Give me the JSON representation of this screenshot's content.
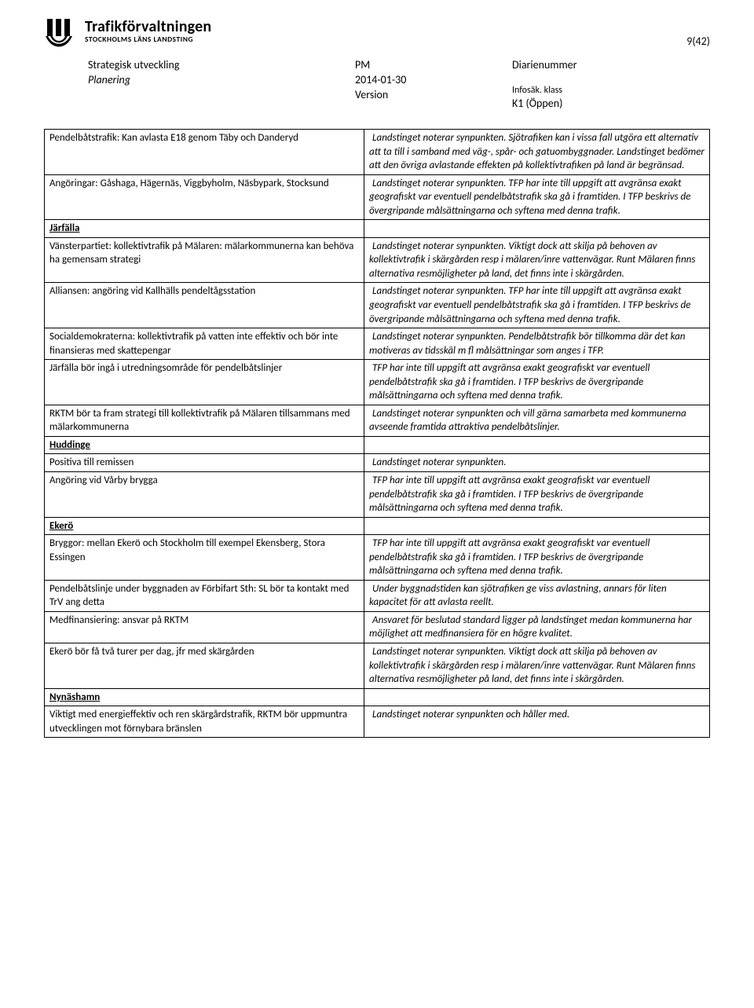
{
  "header": {
    "logo_main": "Trafikförvaltningen",
    "logo_sub": "STOCKHOLMS LÄNS LANDSTING",
    "page_num": "9(42)"
  },
  "meta": {
    "dept": "Strategisk utveckling",
    "dept_sub": "Planering",
    "doc_type": "PM",
    "date": "2014-01-30",
    "version_label": "Version",
    "diarie_label": "Diarienummer",
    "infosak_label": "Infosäk. klass",
    "infosak_value": "K1 (Öppen)"
  },
  "sections": [
    {
      "rows": [
        {
          "left": "Pendelbåtstrafik: Kan avlasta E18 genom Täby och Danderyd",
          "right": "Landstinget noterar synpunkten. Sjötrafiken kan i vissa fall utgöra ett alternativ att ta till i samband med väg-, spår- och gatuombyggnader. Landstinget bedömer att den övriga avlastande effekten på kollektivtrafiken på land är begränsad."
        },
        {
          "left": "Angöringar: Gåshaga, Hägernäs, Viggbyholm, Näsbypark, Stocksund",
          "right": "Landstinget noterar synpunkten. TFP har inte till uppgift att avgränsa exakt geografiskt var eventuell pendelbåtstrafik ska gå i framtiden. I TFP beskrivs de övergripande målsättningarna och syftena med denna trafik."
        }
      ]
    },
    {
      "title": "Järfälla",
      "rows": [
        {
          "left": "Vänsterpartiet: kollektivtrafik på Mälaren: mälarkommunerna kan behöva ha gemensam strategi",
          "right": "Landstinget noterar synpunkten. Viktigt dock att skilja på behoven av kollektivtrafik i skärgården resp i mälaren/inre vattenvägar. Runt Mälaren finns alternativa resmöjligheter på land, det finns inte i skärgården."
        },
        {
          "left": "Alliansen: angöring vid Kallhälls pendeltågsstation",
          "right": "Landstinget noterar synpunkten. TFP har inte till uppgift att avgränsa exakt geografiskt var eventuell pendelbåtstrafik ska gå i framtiden. I TFP beskrivs de övergripande målsättningarna och syftena med denna trafik."
        },
        {
          "left": "Socialdemokraterna: kollektivtrafik på vatten inte effektiv och bör inte finansieras med skattepengar",
          "right": "Landstinget noterar synpunkten. Pendelbåtstrafik bör tillkomma där det kan motiveras av tidsskäl m fl målsättningar som anges i TFP."
        },
        {
          "left": "Järfälla bör ingå i utredningsområde för pendelbåtslinjer",
          "right": "TFP har inte till uppgift att avgränsa exakt geografiskt var eventuell pendelbåtstrafik ska gå i framtiden. I TFP beskrivs de övergripande målsättningarna och syftena med denna trafik."
        },
        {
          "left": "RKTM bör ta fram strategi till kollektivtrafik på Mälaren tillsammans med mälarkommunerna",
          "right": "Landstinget noterar synpunkten och vill gärna samarbeta med kommunerna avseende framtida attraktiva pendelbåtslinjer."
        }
      ]
    },
    {
      "title": "Huddinge",
      "rows": [
        {
          "left": "Positiva till remissen",
          "right": "Landstinget noterar synpunkten."
        },
        {
          "left": "Angöring vid Vårby brygga",
          "right": "TFP har inte till uppgift att avgränsa exakt geografiskt var eventuell pendelbåtstrafik ska gå i framtiden. I TFP beskrivs de övergripande målsättningarna och syftena med denna trafik."
        }
      ]
    },
    {
      "title": "Ekerö",
      "rows": [
        {
          "left": "Bryggor: mellan Ekerö och Stockholm till exempel Ekensberg, Stora Essingen",
          "right": "TFP har inte till uppgift att avgränsa exakt geografiskt var eventuell pendelbåtstrafik ska gå i framtiden. I TFP beskrivs de övergripande målsättningarna och syftena med denna trafik."
        },
        {
          "left": "Pendelbåtslinje under byggnaden av Förbifart Sth: SL bör ta kontakt med TrV ang detta",
          "right": "Under byggnadstiden kan sjötrafiken ge viss avlastning, annars för liten kapacitet för att avlasta reellt."
        },
        {
          "left": "Medfinansiering: ansvar på RKTM",
          "right": "Ansvaret för beslutad standard ligger på landstinget medan kommunerna har möjlighet att medfinansiera för en högre kvalitet."
        },
        {
          "left": "Ekerö bör få två turer per dag, jfr med skärgården",
          "right": "Landstinget noterar synpunkten. Viktigt dock att skilja på behoven av kollektivtrafik i skärgården resp i mälaren/inre vattenvägar. Runt Mälaren finns alternativa resmöjligheter på land, det finns inte i skärgården."
        }
      ]
    },
    {
      "title": "Nynäshamn",
      "rows": [
        {
          "left": "Viktigt med energieffektiv och ren skärgårdstrafik, RKTM bör uppmuntra utvecklingen mot förnybara bränslen",
          "right": "Landstinget noterar synpunkten och håller med."
        }
      ]
    }
  ]
}
